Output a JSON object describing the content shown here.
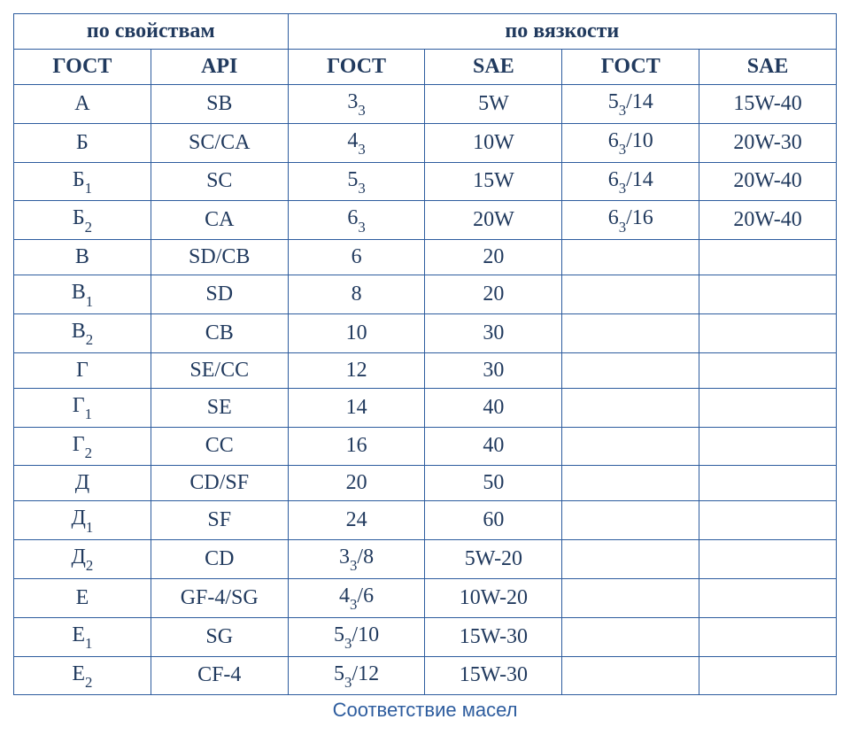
{
  "table": {
    "group_headers": [
      "по свойствам",
      "по вязкости"
    ],
    "col_headers": [
      "ГОСТ",
      "API",
      "ГОСТ",
      "SAE",
      "ГОСТ",
      "SAE"
    ],
    "rows": [
      [
        "А",
        "SB",
        "3₃",
        "5W",
        "5₃/14",
        "15W-40"
      ],
      [
        "Б",
        "SC/CA",
        "4₃",
        "10W",
        "6₃/10",
        "20W-30"
      ],
      [
        "Б₁",
        "SC",
        "5₃",
        "15W",
        "6₃/14",
        "20W-40"
      ],
      [
        "Б₂",
        "CA",
        "6₃",
        "20W",
        "6₃/16",
        "20W-40"
      ],
      [
        "В",
        "SD/CB",
        "6",
        "20",
        "",
        ""
      ],
      [
        "В₁",
        "SD",
        "8",
        "20",
        "",
        ""
      ],
      [
        "В₂",
        "CB",
        "10",
        "30",
        "",
        ""
      ],
      [
        "Г",
        "SE/CC",
        "12",
        "30",
        "",
        ""
      ],
      [
        "Г₁",
        "SE",
        "14",
        "40",
        "",
        ""
      ],
      [
        "Г₂",
        "CC",
        "16",
        "40",
        "",
        ""
      ],
      [
        "Д",
        "CD/SF",
        "20",
        "50",
        "",
        ""
      ],
      [
        "Д₁",
        "SF",
        "24",
        "60",
        "",
        ""
      ],
      [
        "Д₂",
        "CD",
        "3₃/8",
        "5W-20",
        "",
        ""
      ],
      [
        "Е",
        "GF-4/SG",
        "4₃/6",
        "10W-20",
        "",
        ""
      ],
      [
        "Е₁",
        "SG",
        "5₃/10",
        "15W-30",
        "",
        ""
      ],
      [
        "Е₂",
        "CF-4",
        "5₃/12",
        "15W-30",
        "",
        ""
      ]
    ],
    "caption": "Соответствие масел",
    "colors": {
      "border": "#2d5c9e",
      "text": "#213a5e",
      "caption_text": "#2d5c9e",
      "background": "#ffffff"
    },
    "font": {
      "header_size_pt": 24,
      "cell_size_pt": 24,
      "caption_size_pt": 22,
      "caption_family": "Arial",
      "body_family": "Times New Roman"
    }
  }
}
